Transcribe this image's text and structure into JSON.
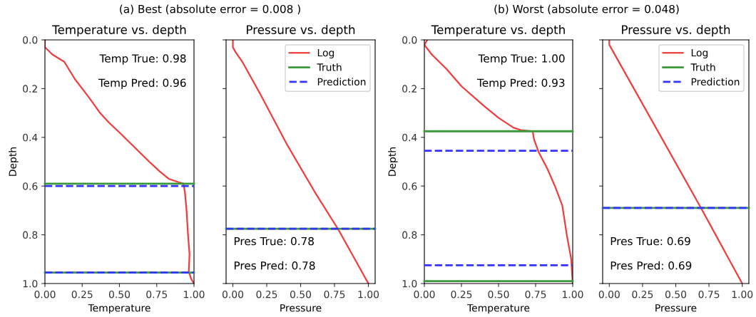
{
  "chart_data": [
    {
      "type": "line",
      "subtitle": "(a) Best (absolute error = 0.008 )",
      "title": "Temperature vs. depth",
      "xlabel": "Temperature",
      "ylabel": "Depth",
      "xlim": [
        0,
        1.0
      ],
      "ylim": [
        1.0,
        0.0
      ],
      "xticks": [
        {
          "value": 0,
          "label": "0.00"
        },
        {
          "value": 0.25,
          "label": "0.25"
        },
        {
          "value": 0.5,
          "label": "0.50"
        },
        {
          "value": 0.75,
          "label": "0.75"
        },
        {
          "value": 1.0,
          "label": "1.00"
        }
      ],
      "yticks": [
        {
          "value": 0,
          "label": "0.0"
        },
        {
          "value": 0.2,
          "label": "0.2"
        },
        {
          "value": 0.4,
          "label": "0.4"
        },
        {
          "value": 0.6,
          "label": "0.6"
        },
        {
          "value": 0.8,
          "label": "0.8"
        },
        {
          "value": 1.0,
          "label": "1.0"
        }
      ],
      "series": [
        {
          "color": "#f03c3c",
          "x": [
            0,
            0,
            0.05,
            0.13,
            0.16,
            0.2,
            0.25,
            0.3,
            0.37,
            0.43,
            0.5,
            0.55,
            0.6,
            0.7,
            0.77,
            0.83,
            0.9,
            0.93,
            0.94,
            0.95,
            0.96,
            0.97,
            0.965,
            0.98,
            1.0
          ],
          "values": [
            0,
            0.03,
            0.06,
            0.09,
            0.12,
            0.16,
            0.2,
            0.24,
            0.3,
            0.34,
            0.38,
            0.41,
            0.44,
            0.5,
            0.54,
            0.57,
            0.585,
            0.59,
            0.63,
            0.7,
            0.8,
            0.88,
            0.95,
            0.98,
            1.0
          ]
        }
      ],
      "ref_lines": [
        {
          "axis": "y",
          "value": 0.59,
          "color": "#3a9a3a",
          "line_style": "solid"
        },
        {
          "axis": "y",
          "value": 0.955,
          "color": "#3a9a3a",
          "line_style": "solid"
        },
        {
          "axis": "y",
          "value": 0.6,
          "color": "#3333ff",
          "line_style": "dashed"
        },
        {
          "axis": "y",
          "value": 0.955,
          "color": "#3333ff",
          "line_style": "dashed"
        }
      ],
      "annotations": [
        "Temp True: 0.98",
        "Temp Pred: 0.96"
      ],
      "legend": false,
      "grid": false
    },
    {
      "type": "line",
      "title": "Pressure vs. depth",
      "xlabel": "Pressure",
      "xlim": [
        -0.05,
        1.05
      ],
      "ylim": [
        1.0,
        0.0
      ],
      "tick_labels": "x",
      "xticks": [
        {
          "value": 0,
          "label": "0.00"
        },
        {
          "value": 0.25,
          "label": "0.25"
        },
        {
          "value": 0.5,
          "label": "0.50"
        },
        {
          "value": 0.75,
          "label": "0.75"
        },
        {
          "value": 1.0,
          "label": "1.00"
        }
      ],
      "yticks": [
        {
          "value": 0,
          "label": null
        },
        {
          "value": 0.2,
          "label": null
        },
        {
          "value": 0.4,
          "label": null
        },
        {
          "value": 0.6,
          "label": null
        },
        {
          "value": 0.8,
          "label": null
        },
        {
          "value": 1.0,
          "label": null
        }
      ],
      "series": [
        {
          "name": "Log",
          "color": "#f03c3c",
          "x": [
            0,
            0,
            0.02,
            0.07,
            0.2,
            0.4,
            0.6,
            0.78,
            1.0
          ],
          "values": [
            0,
            0.03,
            0.05,
            0.09,
            0.22,
            0.43,
            0.62,
            0.78,
            1.0
          ]
        }
      ],
      "ref_lines": [
        {
          "axis": "y",
          "value": 0.775,
          "color": "#3a9a3a",
          "line_style": "solid",
          "label": "Truth"
        },
        {
          "axis": "y",
          "value": 0.775,
          "color": "#3333ff",
          "line_style": "dashed",
          "label": "Prediction"
        }
      ],
      "annotations": [
        "Pres True: 0.78",
        "Pres Pred: 0.78"
      ],
      "legend": "top right",
      "grid": false
    },
    {
      "type": "line",
      "subtitle": "(b) Worst (absolute error = 0.048)",
      "title": "Temperature vs. depth",
      "xlabel": "Temperature",
      "ylabel": "Depth",
      "xlim": [
        0,
        1.0
      ],
      "ylim": [
        1.0,
        0.0
      ],
      "xticks": [
        {
          "value": 0,
          "label": "0.00"
        },
        {
          "value": 0.25,
          "label": "0.25"
        },
        {
          "value": 0.5,
          "label": "0.50"
        },
        {
          "value": 0.75,
          "label": "0.75"
        },
        {
          "value": 1.0,
          "label": "1.00"
        }
      ],
      "yticks": [
        {
          "value": 0,
          "label": "0.0"
        },
        {
          "value": 0.2,
          "label": "0.2"
        },
        {
          "value": 0.4,
          "label": "0.4"
        },
        {
          "value": 0.6,
          "label": "0.6"
        },
        {
          "value": 0.8,
          "label": "0.8"
        },
        {
          "value": 1.0,
          "label": "1.0"
        }
      ],
      "series": [
        {
          "color": "#f03c3c",
          "x": [
            0.02,
            0.01,
            0,
            0.05,
            0.15,
            0.25,
            0.4,
            0.5,
            0.6,
            0.65,
            0.73,
            0.74,
            0.77,
            0.83,
            0.88,
            0.93,
            0.96,
            0.99,
            1.0
          ],
          "values": [
            0,
            0.01,
            0.02,
            0.06,
            0.12,
            0.19,
            0.27,
            0.32,
            0.36,
            0.37,
            0.375,
            0.41,
            0.46,
            0.53,
            0.6,
            0.68,
            0.8,
            0.9,
            1.0
          ]
        }
      ],
      "ref_lines": [
        {
          "axis": "y",
          "value": 0.375,
          "color": "#3a9a3a",
          "line_style": "solid"
        },
        {
          "axis": "y",
          "value": 0.99,
          "color": "#3a9a3a",
          "line_style": "solid"
        },
        {
          "axis": "y",
          "value": 0.455,
          "color": "#3333ff",
          "line_style": "dashed"
        },
        {
          "axis": "y",
          "value": 0.925,
          "color": "#3333ff",
          "line_style": "dashed"
        }
      ],
      "annotations": [
        "Temp True: 1.00",
        "Temp Pred: 0.93"
      ],
      "legend": false,
      "grid": false
    },
    {
      "type": "line",
      "title": "Pressure vs. depth",
      "xlabel": "Pressure",
      "xlim": [
        -0.05,
        1.05
      ],
      "ylim": [
        1.0,
        0.0
      ],
      "tick_labels": "x",
      "xticks": [
        {
          "value": 0,
          "label": "0.00"
        },
        {
          "value": 0.25,
          "label": "0.25"
        },
        {
          "value": 0.5,
          "label": "0.50"
        },
        {
          "value": 0.75,
          "label": "0.75"
        },
        {
          "value": 1.0,
          "label": "1.00"
        }
      ],
      "yticks": [
        {
          "value": 0,
          "label": null
        },
        {
          "value": 0.2,
          "label": null
        },
        {
          "value": 0.4,
          "label": null
        },
        {
          "value": 0.6,
          "label": null
        },
        {
          "value": 0.8,
          "label": null
        },
        {
          "value": 1.0,
          "label": null
        }
      ],
      "series": [
        {
          "name": "Log",
          "color": "#f03c3c",
          "x": [
            0,
            0,
            0.69,
            1.0
          ],
          "values": [
            0,
            0.02,
            0.69,
            1.0
          ]
        }
      ],
      "ref_lines": [
        {
          "axis": "y",
          "value": 0.69,
          "color": "#3a9a3a",
          "line_style": "solid",
          "label": "Truth"
        },
        {
          "axis": "y",
          "value": 0.69,
          "color": "#3333ff",
          "line_style": "dashed",
          "label": "Prediction"
        }
      ],
      "annotations": [
        "Pres True: 0.69",
        "Pres Pred: 0.69"
      ],
      "legend": "top right",
      "grid": false
    }
  ]
}
